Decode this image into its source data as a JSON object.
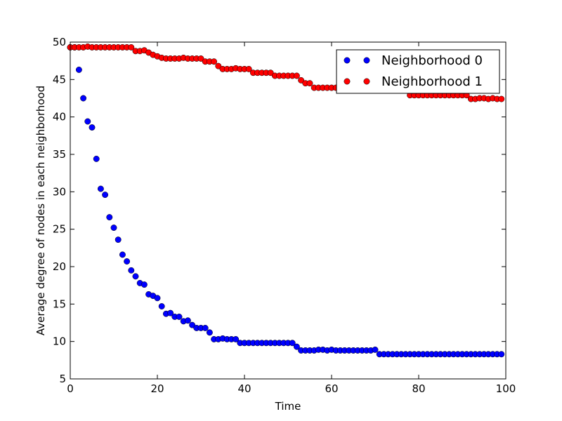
{
  "chart_data": {
    "type": "scatter",
    "title": "",
    "xlabel": "Time",
    "ylabel": "Average degree of nodes in each neighborhood",
    "xlim": [
      0,
      100
    ],
    "ylim": [
      5,
      50
    ],
    "xticks": [
      0,
      20,
      40,
      60,
      80,
      100
    ],
    "yticks": [
      5,
      10,
      15,
      20,
      25,
      30,
      35,
      40,
      45,
      50
    ],
    "grid": false,
    "legend_position": "top-right",
    "series": [
      {
        "name": "Neighborhood 0",
        "color": "#0000ff",
        "x": [
          0,
          1,
          2,
          3,
          4,
          5,
          6,
          7,
          8,
          9,
          10,
          11,
          12,
          13,
          14,
          15,
          16,
          17,
          18,
          19,
          20,
          21,
          22,
          23,
          24,
          25,
          26,
          27,
          28,
          29,
          30,
          31,
          32,
          33,
          34,
          35,
          36,
          37,
          38,
          39,
          40,
          41,
          42,
          43,
          44,
          45,
          46,
          47,
          48,
          49,
          50,
          51,
          52,
          53,
          54,
          55,
          56,
          57,
          58,
          59,
          60,
          61,
          62,
          63,
          64,
          65,
          66,
          67,
          68,
          69,
          70,
          71,
          72,
          73,
          74,
          75,
          76,
          77,
          78,
          79,
          80,
          81,
          82,
          83,
          84,
          85,
          86,
          87,
          88,
          89,
          90,
          91,
          92,
          93,
          94,
          95,
          96,
          97,
          98,
          99
        ],
        "y": [
          49.3,
          49.3,
          46.3,
          42.5,
          39.4,
          38.6,
          34.4,
          30.4,
          29.6,
          26.6,
          25.2,
          23.6,
          21.6,
          20.7,
          19.5,
          18.7,
          17.8,
          17.6,
          16.3,
          16.1,
          15.8,
          14.7,
          13.7,
          13.8,
          13.3,
          13.3,
          12.7,
          12.8,
          12.2,
          11.8,
          11.8,
          11.8,
          11.2,
          10.3,
          10.3,
          10.4,
          10.3,
          10.3,
          10.3,
          9.8,
          9.8,
          9.8,
          9.8,
          9.8,
          9.8,
          9.8,
          9.8,
          9.8,
          9.8,
          9.8,
          9.8,
          9.8,
          9.3,
          8.8,
          8.8,
          8.8,
          8.8,
          8.9,
          8.9,
          8.8,
          8.9,
          8.8,
          8.8,
          8.8,
          8.8,
          8.8,
          8.8,
          8.8,
          8.8,
          8.8,
          8.9,
          8.3,
          8.3,
          8.3,
          8.3,
          8.3,
          8.3,
          8.3,
          8.3,
          8.3,
          8.3,
          8.3,
          8.3,
          8.3,
          8.3,
          8.3,
          8.3,
          8.3,
          8.3,
          8.3,
          8.3,
          8.3,
          8.3,
          8.3,
          8.3,
          8.3,
          8.3,
          8.3,
          8.3,
          8.3
        ]
      },
      {
        "name": "Neighborhood 1",
        "color": "#ff0000",
        "x": [
          0,
          1,
          2,
          3,
          4,
          5,
          6,
          7,
          8,
          9,
          10,
          11,
          12,
          13,
          14,
          15,
          16,
          17,
          18,
          19,
          20,
          21,
          22,
          23,
          24,
          25,
          26,
          27,
          28,
          29,
          30,
          31,
          32,
          33,
          34,
          35,
          36,
          37,
          38,
          39,
          40,
          41,
          42,
          43,
          44,
          45,
          46,
          47,
          48,
          49,
          50,
          51,
          52,
          53,
          54,
          55,
          56,
          57,
          58,
          59,
          60,
          61,
          62,
          63,
          64,
          65,
          66,
          67,
          68,
          69,
          70,
          71,
          72,
          73,
          74,
          75,
          76,
          77,
          78,
          79,
          80,
          81,
          82,
          83,
          84,
          85,
          86,
          87,
          88,
          89,
          90,
          91,
          92,
          93,
          94,
          95,
          96,
          97,
          98,
          99
        ],
        "y": [
          49.3,
          49.3,
          49.3,
          49.3,
          49.4,
          49.3,
          49.3,
          49.3,
          49.3,
          49.3,
          49.3,
          49.3,
          49.3,
          49.3,
          49.3,
          48.8,
          48.8,
          48.9,
          48.6,
          48.3,
          48.1,
          47.9,
          47.8,
          47.8,
          47.8,
          47.8,
          47.9,
          47.8,
          47.8,
          47.8,
          47.8,
          47.4,
          47.4,
          47.4,
          46.8,
          46.4,
          46.4,
          46.4,
          46.5,
          46.4,
          46.4,
          46.4,
          45.9,
          45.9,
          45.9,
          45.9,
          45.9,
          45.5,
          45.5,
          45.5,
          45.5,
          45.5,
          45.5,
          44.9,
          44.5,
          44.5,
          43.9,
          43.9,
          43.9,
          43.9,
          43.9,
          43.9,
          43.9,
          43.9,
          43.9,
          43.9,
          43.9,
          43.9,
          43.9,
          43.9,
          43.9,
          43.9,
          43.9,
          43.9,
          43.9,
          43.9,
          43.9,
          43.9,
          42.9,
          42.9,
          42.9,
          42.9,
          42.9,
          42.9,
          42.9,
          42.9,
          42.9,
          42.9,
          42.9,
          42.9,
          42.9,
          42.9,
          42.4,
          42.4,
          42.5,
          42.5,
          42.4,
          42.5,
          42.4,
          42.4
        ]
      }
    ]
  }
}
